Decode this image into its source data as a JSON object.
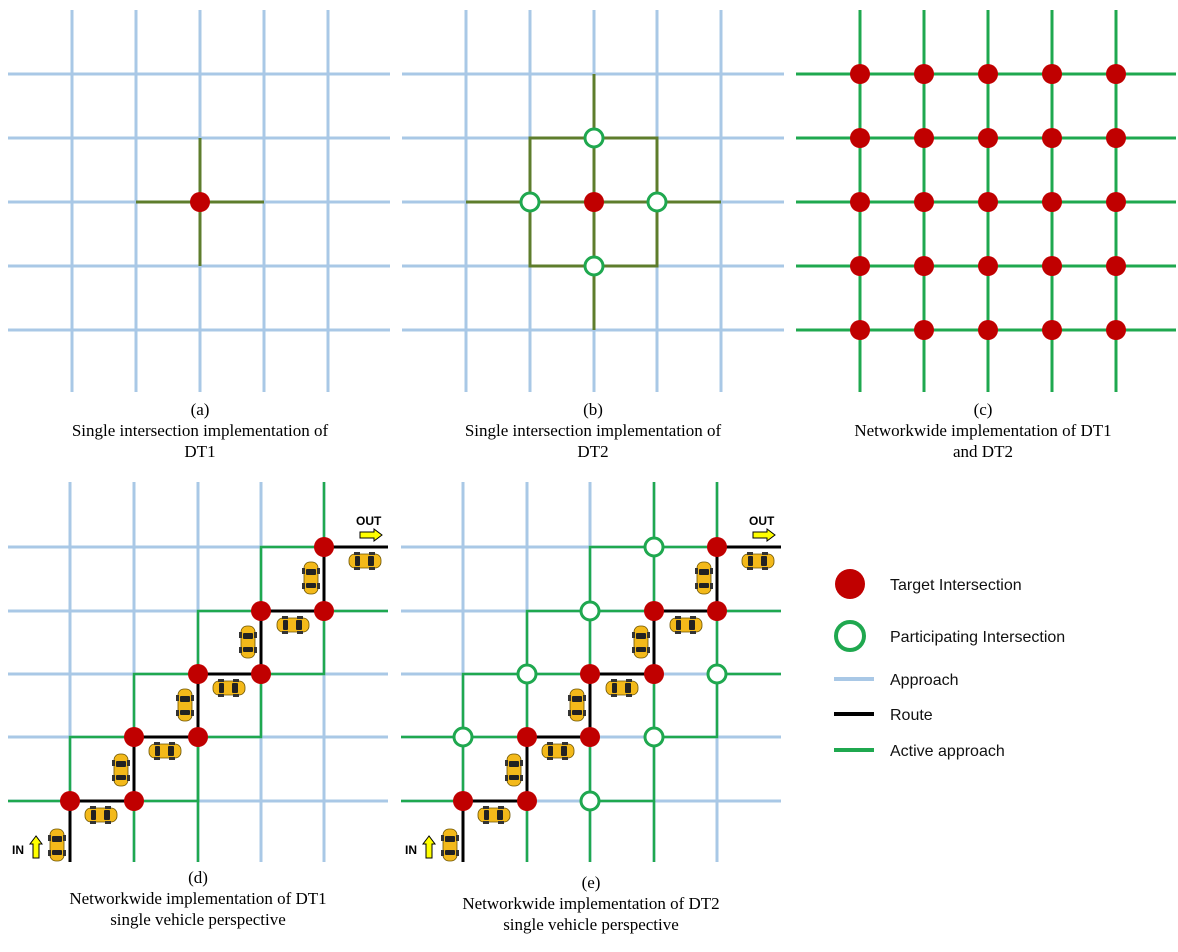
{
  "panels": [
    {
      "id": "a",
      "letter": "(a)",
      "caption_lines": [
        "Single intersection implementation of",
        "DT1"
      ]
    },
    {
      "id": "b",
      "letter": "(b)",
      "caption_lines": [
        "Single intersection implementation of",
        "DT2"
      ]
    },
    {
      "id": "c",
      "letter": "(c)",
      "caption_lines": [
        "Networkwide implementation of DT1",
        "and DT2"
      ]
    },
    {
      "id": "d",
      "letter": "(d)",
      "caption_lines": [
        "Networkwide implementation of DT1",
        "single vehicle perspective"
      ]
    },
    {
      "id": "e",
      "letter": "(e)",
      "caption_lines": [
        "Networkwide implementation of DT2",
        "single vehicle perspective"
      ]
    }
  ],
  "route_tags": {
    "in": "IN",
    "out": "OUT"
  },
  "legend": [
    {
      "key": "target",
      "label": "Target Intersection"
    },
    {
      "key": "participating",
      "label": "Participating Intersection"
    },
    {
      "key": "approach",
      "label": "Approach"
    },
    {
      "key": "route",
      "label": "Route"
    },
    {
      "key": "active",
      "label": "Active approach"
    }
  ],
  "colors": {
    "approach": "#a9c8e6",
    "active": "#1fa84f",
    "active_dark": "#5e7d2c",
    "route": "#000000",
    "target": "#c00000",
    "participating_stroke": "#1fa84f",
    "arrow": "#ffff00",
    "car": "#f3b91a"
  }
}
